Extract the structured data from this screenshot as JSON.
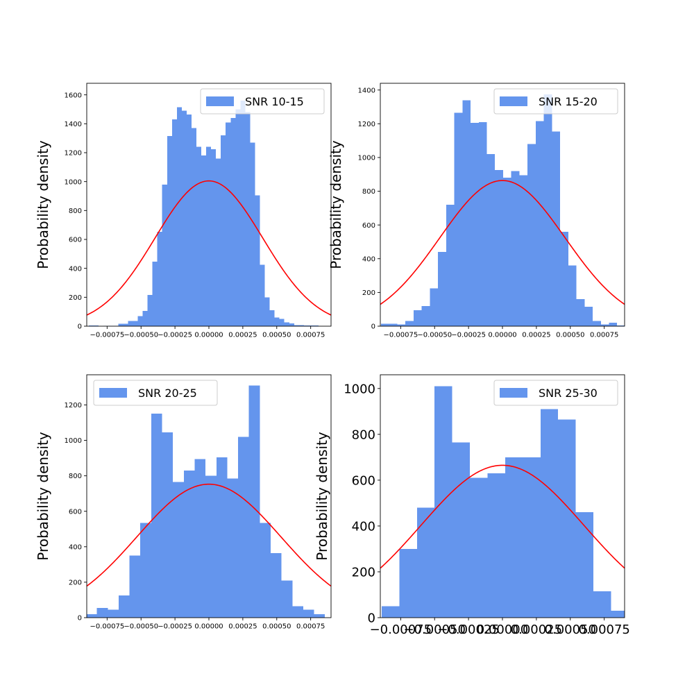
{
  "chart_data": [
    {
      "type": "bar",
      "title": "",
      "xlabel": "",
      "ylabel": "Probability density",
      "legend": "SNR 10-15",
      "legend_position": "top-right",
      "xlim": [
        -0.0009,
        0.0009
      ],
      "ylim": [
        0,
        1680
      ],
      "bin_edges": [
        -0.000884,
        -0.000848,
        -0.000812,
        -0.000776,
        -0.00074,
        -0.000704,
        -0.000668,
        -0.000632,
        -0.000596,
        -0.00056,
        -0.000524,
        -0.000488,
        -0.000452,
        -0.000416,
        -0.00038,
        -0.000344,
        -0.000308,
        -0.000272,
        -0.000236,
        -0.0002,
        -0.000164,
        -0.000128,
        -9.2e-05,
        -5.6e-05,
        -2e-05,
        1.6e-05,
        5.2e-05,
        8.8e-05,
        0.000124,
        0.00016,
        0.000196,
        0.000232,
        0.000268,
        0.000304,
        0.00034,
        0.000376,
        0.000412,
        0.000448,
        0.000484,
        0.00052,
        0.000556,
        0.000592,
        0.000628,
        0.000664,
        0.0007,
        0.000736,
        0.000772,
        0.000808,
        0.000844,
        0.00088
      ],
      "values": [
        5,
        5,
        0,
        3,
        3,
        3,
        18,
        18,
        36,
        36,
        70,
        106,
        215,
        447,
        653,
        980,
        1315,
        1430,
        1515,
        1490,
        1465,
        1370,
        1240,
        1180,
        1240,
        1225,
        1160,
        1320,
        1410,
        1440,
        1500,
        1560,
        1480,
        1270,
        905,
        425,
        200,
        110,
        60,
        50,
        27,
        20,
        8,
        8,
        5,
        5,
        5,
        0,
        0
      ],
      "normal_curve": {
        "mean": 0,
        "std": 0.000397,
        "color": "#ff0000"
      },
      "xticks": [
        -0.00075,
        -0.0005,
        -0.00025,
        0,
        0.00025,
        0.0005,
        0.00075
      ],
      "xtick_labels": [
        "−0.00075",
        "−0.00050",
        "−0.00025",
        "0.00000",
        "0.00025",
        "0.00050",
        "0.00075"
      ],
      "yticks": [
        0,
        200,
        400,
        600,
        800,
        1000,
        1200,
        1400,
        1600
      ],
      "ytick_labels": [
        "0",
        "200",
        "400",
        "600",
        "800",
        "1000",
        "1200",
        "1400",
        "1600"
      ]
    },
    {
      "type": "bar",
      "title": "",
      "xlabel": "",
      "ylabel": "Probability density",
      "legend": "SNR 15-20",
      "legend_position": "top-right",
      "xlim": [
        -0.0009,
        0.0009
      ],
      "ylim": [
        0,
        1440
      ],
      "bin_edges": [
        -0.000895,
        -0.000835,
        -0.000775,
        -0.000715,
        -0.000655,
        -0.000595,
        -0.000535,
        -0.000475,
        -0.000415,
        -0.000355,
        -0.000295,
        -0.000235,
        -0.000175,
        -0.000115,
        -5.5e-05,
        5e-06,
        6.5e-05,
        0.000125,
        0.000185,
        0.000245,
        0.000305,
        0.000365,
        0.000425,
        0.000485,
        0.000545,
        0.000605,
        0.000665,
        0.000725,
        0.000785,
        0.000845,
        0.000905
      ],
      "values": [
        15,
        15,
        10,
        30,
        95,
        120,
        225,
        440,
        720,
        1265,
        1340,
        1205,
        1210,
        1020,
        925,
        880,
        920,
        895,
        1080,
        1215,
        1375,
        1155,
        560,
        360,
        160,
        115,
        30,
        10,
        20,
        5
      ],
      "normal_curve": {
        "mean": 0,
        "std": 0.000462,
        "color": "#ff0000"
      },
      "xticks": [
        -0.00075,
        -0.0005,
        -0.00025,
        0,
        0.00025,
        0.0005,
        0.00075
      ],
      "xtick_labels": [
        "−0.00075",
        "−0.00050",
        "−0.00025",
        "0.00000",
        "0.00025",
        "0.00050",
        "0.00075"
      ],
      "yticks": [
        0,
        200,
        400,
        600,
        800,
        1000,
        1200,
        1400
      ],
      "ytick_labels": [
        "0",
        "200",
        "400",
        "600",
        "800",
        "1000",
        "1200",
        "1400"
      ]
    },
    {
      "type": "bar",
      "title": "",
      "xlabel": "",
      "ylabel": "Probability density",
      "legend": "SNR 20-25",
      "legend_position": "top-left",
      "xlim": [
        -0.0009,
        0.0009
      ],
      "ylim": [
        0,
        1370
      ],
      "bin_edges": [
        -0.000905,
        -0.000825,
        -0.000745,
        -0.000665,
        -0.000585,
        -0.000505,
        -0.000425,
        -0.000345,
        -0.000265,
        -0.000185,
        -0.000105,
        -2.5e-05,
        5.5e-05,
        0.000135,
        0.000215,
        0.000295,
        0.000375,
        0.000455,
        0.000535,
        0.000615,
        0.000695,
        0.000775,
        0.000855
      ],
      "values": [
        20,
        55,
        45,
        125,
        350,
        535,
        1150,
        1045,
        765,
        830,
        895,
        800,
        905,
        785,
        1020,
        1310,
        535,
        365,
        210,
        65,
        45,
        20
      ],
      "normal_curve": {
        "mean": 0,
        "std": 0.00053,
        "color": "#ff0000"
      },
      "xticks": [
        -0.00075,
        -0.0005,
        -0.00025,
        0,
        0.00025,
        0.0005,
        0.00075
      ],
      "xtick_labels": [
        "−0.00075",
        "−0.00050",
        "−0.00025",
        "0.00000",
        "0.00025",
        "0.00050",
        "0.00075"
      ],
      "yticks": [
        0,
        200,
        400,
        600,
        800,
        1000,
        1200
      ],
      "ytick_labels": [
        "0",
        "200",
        "400",
        "600",
        "800",
        "1000",
        "1200"
      ]
    },
    {
      "type": "bar",
      "title": "",
      "xlabel": "",
      "ylabel": "Probability density",
      "legend": "SNR 25-30",
      "legend_position": "top-right",
      "xlim": [
        -0.0009,
        0.0009
      ],
      "ylim": [
        0,
        1060
      ],
      "bin_edges": [
        -0.00089,
        -0.00076,
        -0.00063,
        -0.0005,
        -0.00037,
        -0.00024,
        -0.00011,
        2e-05,
        0.00015,
        0.00028,
        0.00041,
        0.00054,
        0.00067,
        0.0008,
        0.00093
      ],
      "values": [
        50,
        300,
        480,
        1010,
        765,
        610,
        630,
        700,
        700,
        910,
        865,
        460,
        115,
        30
      ],
      "normal_curve": {
        "mean": 0,
        "std": 0.0006,
        "color": "#ff0000"
      },
      "xticks": [
        -0.00075,
        -0.0005,
        -0.00025,
        0,
        0.00025,
        0.0005,
        0.00075
      ],
      "xtick_labels": [
        "−0.00075",
        "−0.00050",
        "−0.00025",
        "0.00000",
        "0.00025",
        "0.00050",
        "0.00075"
      ],
      "yticks": [
        0,
        200,
        400,
        600,
        800,
        1000
      ],
      "ytick_labels": [
        "0",
        "200",
        "400",
        "600",
        "800",
        "1000"
      ]
    }
  ],
  "colors": {
    "bars": "#6495ed",
    "curve": "#ff0000",
    "legend_border": "#cccccc"
  }
}
